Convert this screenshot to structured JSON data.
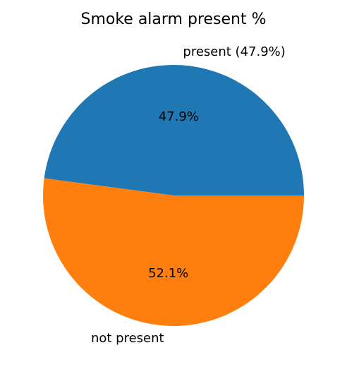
{
  "chart_data": {
    "type": "pie",
    "title": "Smoke alarm present %",
    "slices": [
      {
        "label": "present (47.9%)",
        "value": 47.9,
        "pct_label": "47.9%",
        "color": "#1f77b4"
      },
      {
        "label": "not present",
        "value": 52.1,
        "pct_label": "52.1%",
        "color": "#ff7f0e"
      }
    ],
    "start_angle_deg": 0,
    "direction": "counterclockwise"
  }
}
